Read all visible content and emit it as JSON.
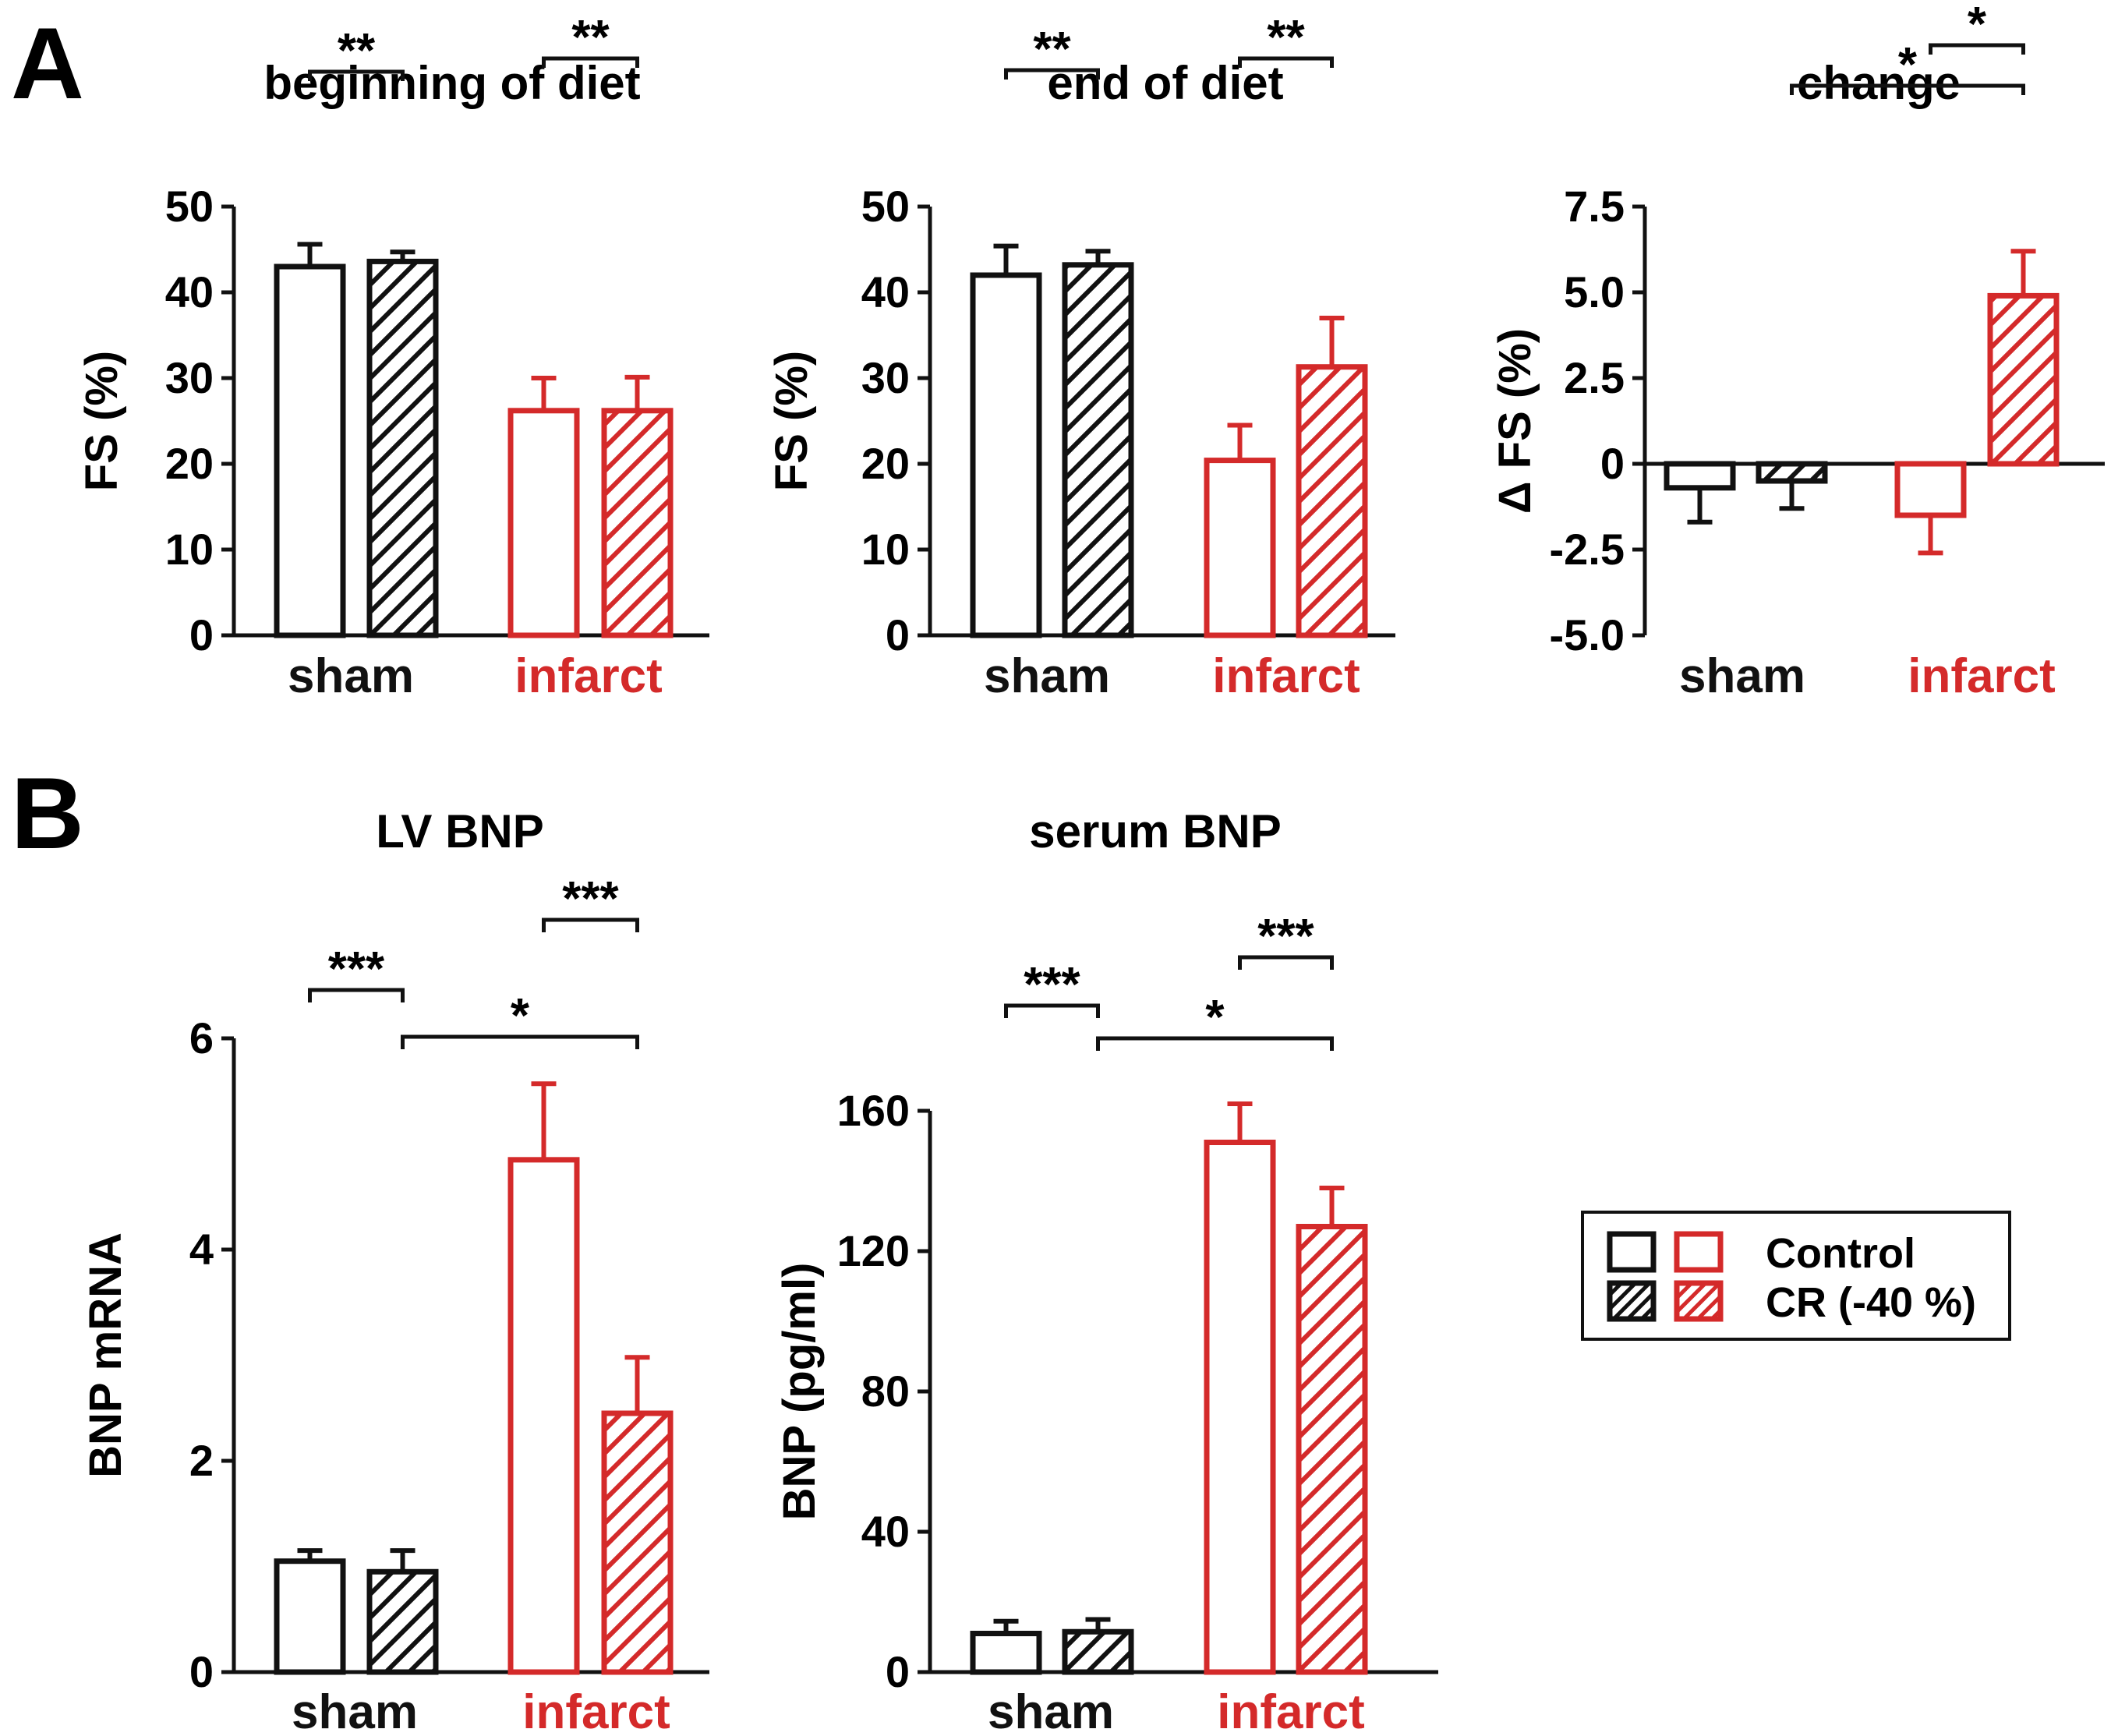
{
  "panels": {
    "A": "A",
    "B": "B"
  },
  "colors": {
    "control_group": "#111111",
    "infarct_group": "#d42a2a"
  },
  "legend": {
    "control": "Control",
    "cr": "CR (-40 %)"
  },
  "chart_data": [
    {
      "type": "bar",
      "title": "beginning of diet",
      "ylabel": "FS (%)",
      "ylim": [
        0,
        50
      ],
      "yticks": [
        "0",
        "10",
        "20",
        "30",
        "40",
        "50"
      ],
      "groups": [
        "sham",
        "infarct"
      ],
      "series": [
        {
          "name": "Control",
          "values": [
            43,
            26.2
          ]
        },
        {
          "name": "CR (-40 %)",
          "values": [
            43.6,
            26.2
          ]
        }
      ],
      "errors": [
        [
          2.6,
          3.8
        ],
        [
          1.1,
          3.9
        ]
      ],
      "significance": [
        {
          "from": [
            0,
            1
          ],
          "to": [
            1,
            1
          ],
          "label": "**"
        },
        {
          "from": [
            0,
            0
          ],
          "to": [
            1,
            0
          ],
          "label": "**"
        }
      ]
    },
    {
      "type": "bar",
      "title": "end of diet",
      "ylabel": "FS (%)",
      "ylim": [
        0,
        50
      ],
      "yticks": [
        "0",
        "10",
        "20",
        "30",
        "40",
        "50"
      ],
      "groups": [
        "sham",
        "infarct"
      ],
      "series": [
        {
          "name": "Control",
          "values": [
            42,
            20.4
          ]
        },
        {
          "name": "CR (-40 %)",
          "values": [
            43.2,
            31.3
          ]
        }
      ],
      "errors": [
        [
          3.4,
          4.1
        ],
        [
          1.6,
          5.7
        ]
      ],
      "significance": [
        {
          "from": [
            0,
            1
          ],
          "to": [
            1,
            1
          ],
          "label": "**"
        },
        {
          "from": [
            0,
            0
          ],
          "to": [
            1,
            0
          ],
          "label": "**"
        }
      ]
    },
    {
      "type": "bar",
      "title": "change",
      "ylabel": "Δ FS (%)",
      "ylim": [
        -5,
        7.5
      ],
      "yticks": [
        "-5.0",
        "-2.5",
        "0",
        "2.5",
        "5.0",
        "7.5"
      ],
      "groups": [
        "sham",
        "infarct"
      ],
      "series": [
        {
          "name": "Control",
          "values": [
            -0.7,
            -1.5
          ]
        },
        {
          "name": "CR (-40 %)",
          "values": [
            -0.5,
            4.9
          ]
        }
      ],
      "errors": [
        [
          1,
          1.1
        ],
        [
          0.8,
          1.3
        ]
      ],
      "significance": [
        {
          "from": [
            0,
            1
          ],
          "to": [
            1,
            1
          ],
          "label": "*"
        },
        {
          "from": [
            1,
            0
          ],
          "to": [
            1,
            1
          ],
          "label": "*"
        }
      ]
    },
    {
      "type": "bar",
      "title": "LV BNP",
      "ylabel": "BNP mRNA",
      "ylim": [
        0,
        6
      ],
      "yticks": [
        "0",
        "2",
        "4",
        "6"
      ],
      "groups": [
        "sham",
        "infarct"
      ],
      "series": [
        {
          "name": "Control",
          "values": [
            1.05,
            4.85
          ]
        },
        {
          "name": "CR (-40 %)",
          "values": [
            0.95,
            2.45
          ]
        }
      ],
      "errors": [
        [
          0.1,
          0.72
        ],
        [
          0.2,
          0.53
        ]
      ],
      "significance": [
        {
          "from": [
            0,
            1
          ],
          "to": [
            1,
            1
          ],
          "label": "***"
        },
        {
          "from": [
            0,
            0
          ],
          "to": [
            1,
            0
          ],
          "label": "***"
        },
        {
          "from": [
            1,
            0
          ],
          "to": [
            1,
            1
          ],
          "label": "*"
        }
      ]
    },
    {
      "type": "bar",
      "title": "serum BNP",
      "ylabel": "BNP (pg/ml)",
      "ylim": [
        0,
        160
      ],
      "yticks": [
        "0",
        "40",
        "80",
        "120",
        "160"
      ],
      "groups": [
        "sham",
        "infarct"
      ],
      "series": [
        {
          "name": "Control",
          "values": [
            11,
            151
          ]
        },
        {
          "name": "CR (-40 %)",
          "values": [
            11.5,
            127
          ]
        }
      ],
      "errors": [
        [
          3.5,
          11
        ],
        [
          3.5,
          11
        ]
      ],
      "significance": [
        {
          "from": [
            0,
            1
          ],
          "to": [
            1,
            1
          ],
          "label": "***"
        },
        {
          "from": [
            0,
            0
          ],
          "to": [
            1,
            0
          ],
          "label": "***"
        },
        {
          "from": [
            1,
            0
          ],
          "to": [
            1,
            1
          ],
          "label": "*"
        }
      ]
    }
  ]
}
